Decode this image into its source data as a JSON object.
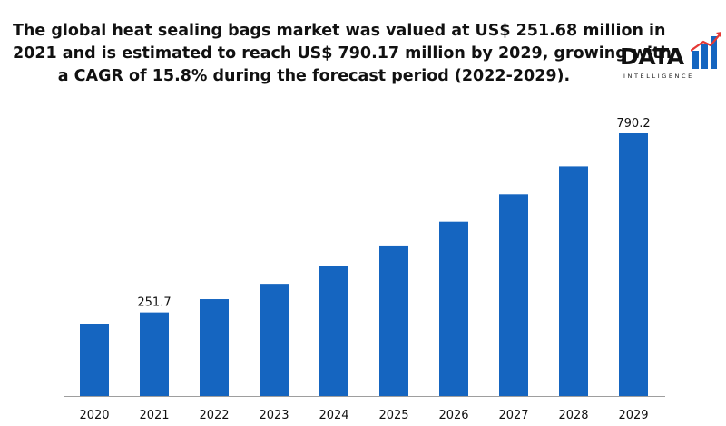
{
  "headline": {
    "line1": "The global heat sealing bags market was valued at US$ 251.68 million in",
    "line2": "2021 and is estimated to reach US$ 790.17 million by 2029, growing with",
    "line3": "a CAGR of 15.8% during the forecast period (2022-2029)."
  },
  "logo": {
    "word": "DATA",
    "sub": "INTELLIGENCE",
    "colors": {
      "blue": "#1565C0",
      "red": "#E53935",
      "grey": "#9E9E9E"
    }
  },
  "chart_data": {
    "type": "bar",
    "title": "",
    "xlabel": "",
    "ylabel": "",
    "categories": [
      "2020",
      "2021",
      "2022",
      "2023",
      "2024",
      "2025",
      "2026",
      "2027",
      "2028",
      "2029"
    ],
    "values": [
      217.3,
      251.7,
      291.5,
      337.5,
      390.8,
      452.5,
      524.0,
      606.8,
      691.0,
      790.2
    ],
    "data_labels": [
      "",
      "251.7",
      "",
      "",
      "",
      "",
      "",
      "",
      "",
      "790.2"
    ],
    "ylim": [
      0,
      800
    ],
    "grid": false,
    "legend": "none",
    "bar_color": "#1565C0",
    "axis_color": "#9E9E9E"
  }
}
